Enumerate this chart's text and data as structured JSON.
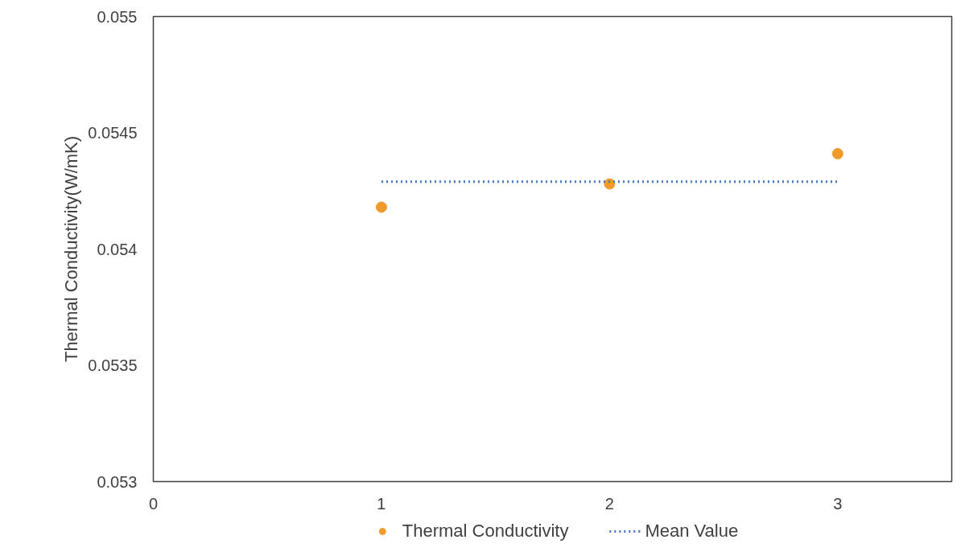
{
  "chart_data": {
    "type": "scatter",
    "ylabel": "Thermal Conductivity(W/mK)",
    "x": [
      1,
      2,
      3
    ],
    "series": [
      {
        "name": "Thermal Conductivity",
        "color": "#f09a2c",
        "marker": "circle",
        "values": [
          0.05418,
          0.05428,
          0.05441
        ]
      },
      {
        "name": "Mean Value",
        "type": "line",
        "color": "#4472c4",
        "line_style": "dotted",
        "marker": "none",
        "x": [
          1,
          3
        ],
        "values": [
          0.05429,
          0.05429
        ]
      }
    ],
    "xlim": [
      0,
      3.5
    ],
    "xticks": [
      0,
      1,
      2,
      3
    ],
    "ylim": [
      0.053,
      0.055
    ],
    "yticks": [
      0.053,
      0.0535,
      0.054,
      0.0545,
      0.055
    ],
    "grid": false,
    "legend": "bottom"
  }
}
